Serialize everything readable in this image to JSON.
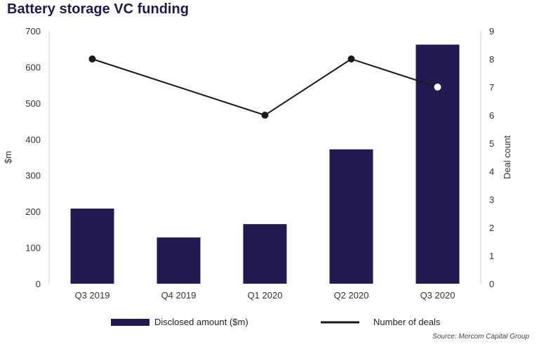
{
  "title": "Battery storage VC funding",
  "source": "Source: Mercom Capital Group",
  "chart_data": {
    "type": "bar",
    "categories": [
      "Q3 2019",
      "Q4 2019",
      "Q1 2020",
      "Q2 2020",
      "Q3 2020"
    ],
    "series": [
      {
        "name": "Disclosed amount ($m)",
        "type": "bar",
        "axis": "left",
        "values": [
          208,
          128,
          165,
          372,
          662
        ],
        "color": "#201a50"
      },
      {
        "name": "Number of deals",
        "type": "line",
        "axis": "right",
        "values": [
          8,
          null,
          6,
          8,
          7
        ],
        "color": "#1a1a1a"
      }
    ],
    "ylabel": "$m",
    "ylim": [
      0,
      700
    ],
    "yticks": [
      0,
      100,
      200,
      300,
      400,
      500,
      600,
      700
    ],
    "y2label": "Deal count",
    "y2lim": [
      0,
      9
    ],
    "y2ticks": [
      0,
      1,
      2,
      3,
      4,
      5,
      6,
      7,
      8,
      9
    ],
    "legend": {
      "position": "bottom",
      "items": [
        "Disclosed amount ($m)",
        "Number of deals"
      ]
    }
  }
}
